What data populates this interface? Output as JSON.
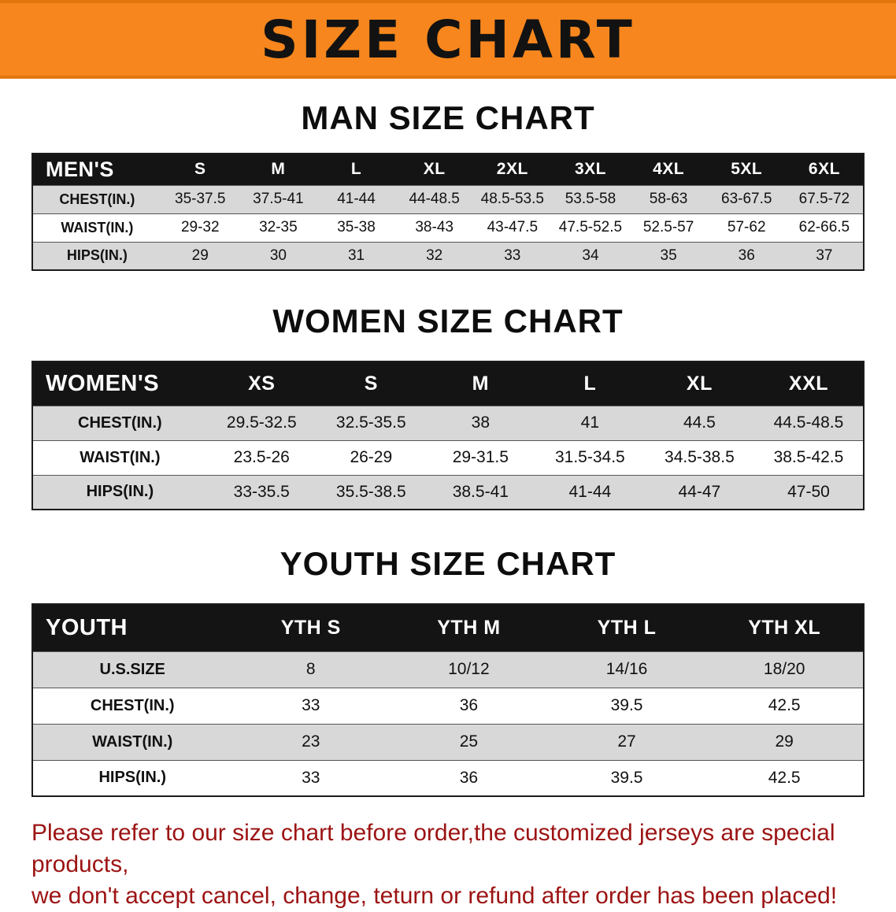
{
  "banner": {
    "title": "SIZE CHART",
    "bg_color": "#f6861d"
  },
  "sections": [
    {
      "heading": "MAN SIZE CHART",
      "table": {
        "label": "MEN'S",
        "columns": [
          "S",
          "M",
          "L",
          "XL",
          "2XL",
          "3XL",
          "4XL",
          "5XL",
          "6XL"
        ],
        "rows": [
          {
            "label": "CHEST(IN.)",
            "values": [
              "35-37.5",
              "37.5-41",
              "41-44",
              "44-48.5",
              "48.5-53.5",
              "53.5-58",
              "58-63",
              "63-67.5",
              "67.5-72"
            ]
          },
          {
            "label": "WAIST(IN.)",
            "values": [
              "29-32",
              "32-35",
              "35-38",
              "38-43",
              "43-47.5",
              "47.5-52.5",
              "52.5-57",
              "57-62",
              "62-66.5"
            ]
          },
          {
            "label": "HIPS(IN.)",
            "values": [
              "29",
              "30",
              "31",
              "32",
              "33",
              "34",
              "35",
              "36",
              "37"
            ]
          }
        ]
      }
    },
    {
      "heading": "WOMEN SIZE CHART",
      "table": {
        "label": "WOMEN'S",
        "columns": [
          "XS",
          "S",
          "M",
          "L",
          "XL",
          "XXL"
        ],
        "rows": [
          {
            "label": "CHEST(IN.)",
            "values": [
              "29.5-32.5",
              "32.5-35.5",
              "38",
              "41",
              "44.5",
              "44.5-48.5"
            ]
          },
          {
            "label": "WAIST(IN.)",
            "values": [
              "23.5-26",
              "26-29",
              "29-31.5",
              "31.5-34.5",
              "34.5-38.5",
              "38.5-42.5"
            ]
          },
          {
            "label": "HIPS(IN.)",
            "values": [
              "33-35.5",
              "35.5-38.5",
              "38.5-41",
              "41-44",
              "44-47",
              "47-50"
            ]
          }
        ]
      }
    },
    {
      "heading": "YOUTH SIZE CHART",
      "table": {
        "label": "YOUTH",
        "columns": [
          "YTH S",
          "YTH M",
          "YTH L",
          "YTH XL"
        ],
        "rows": [
          {
            "label": "U.S.SIZE",
            "values": [
              "8",
              "10/12",
              "14/16",
              "18/20"
            ]
          },
          {
            "label": "CHEST(IN.)",
            "values": [
              "33",
              "36",
              "39.5",
              "42.5"
            ]
          },
          {
            "label": "WAIST(IN.)",
            "values": [
              "23",
              "25",
              "27",
              "29"
            ]
          },
          {
            "label": "HIPS(IN.)",
            "values": [
              "33",
              "36",
              "39.5",
              "42.5"
            ]
          }
        ]
      }
    }
  ],
  "footer": {
    "lines": [
      "Please refer to our size chart before order,the customized jerseys are special products,",
      "we don't accept cancel, change, teturn or refund after order has been placed!"
    ]
  },
  "colors": {
    "banner_orange": "#f6861d",
    "table_header_bar": "#141414",
    "row_shade_gray": "#d8d8d8",
    "notice_red": "#9c1313"
  }
}
